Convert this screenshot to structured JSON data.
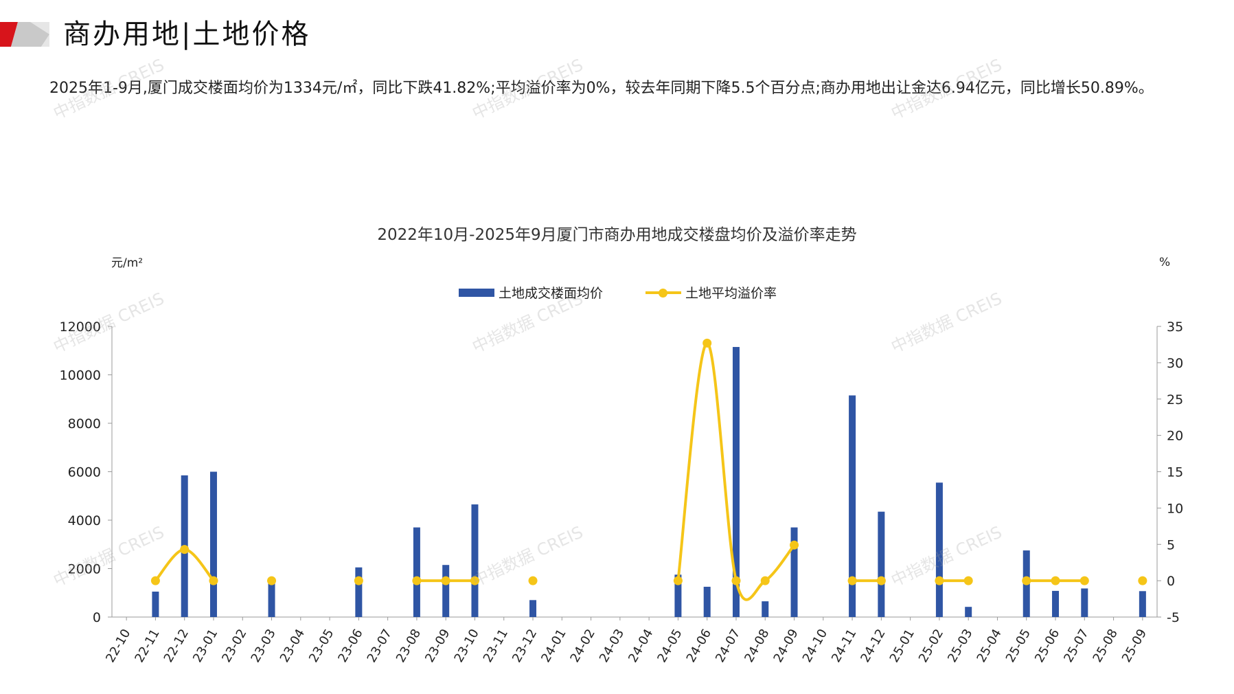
{
  "header": {
    "title": "商办用地|土地价格"
  },
  "summary": "2025年1-9月,厦门成交楼面均价为1334元/㎡，同比下跌41.82%;平均溢价率为0%，较去年同期下降5.5个百分点;商办用地出让金达6.94亿元，同比增长50.89%。",
  "watermark": "中指数据 CREIS",
  "colors": {
    "bar": "#2F55A4",
    "line": "#F5C518",
    "accent": "#D7141B"
  },
  "chart_data": {
    "type": "bar",
    "title": "2022年10月-2025年9月厦门市商办用地成交楼盘均价及溢价率走势",
    "ylabel": "元/m²",
    "y2label": "%",
    "ylim": [
      0,
      12000
    ],
    "yticks": [
      "0",
      "2000",
      "4000",
      "6000",
      "8000",
      "10000",
      "12000"
    ],
    "y2lim": [
      -5,
      35
    ],
    "y2ticks": [
      "-5",
      "0",
      "5",
      "10",
      "15",
      "20",
      "25",
      "30",
      "35"
    ],
    "legend_position": "top-center",
    "grid": false,
    "categories": [
      "22-10",
      "22-11",
      "22-12",
      "23-01",
      "23-02",
      "23-03",
      "23-04",
      "23-05",
      "23-06",
      "23-07",
      "23-08",
      "23-09",
      "23-10",
      "23-11",
      "23-12",
      "24-01",
      "24-02",
      "24-03",
      "24-04",
      "24-05",
      "24-06",
      "24-07",
      "24-08",
      "24-09",
      "24-10",
      "24-11",
      "24-12",
      "25-01",
      "25-02",
      "25-03",
      "25-04",
      "25-05",
      "25-06",
      "25-07",
      "25-08",
      "25-09"
    ],
    "series": [
      {
        "name": "土地成交楼面均价",
        "type": "bar",
        "axis": "left",
        "values": [
          null,
          1050,
          5850,
          6000,
          null,
          1450,
          null,
          null,
          2050,
          null,
          3700,
          2150,
          4650,
          null,
          700,
          null,
          null,
          null,
          null,
          1750,
          1250,
          11150,
          650,
          3700,
          null,
          9150,
          4350,
          null,
          5550,
          420,
          null,
          2750,
          1080,
          1180,
          null,
          1070
        ]
      },
      {
        "name": "土地平均溢价率",
        "type": "line",
        "axis": "right",
        "values": [
          null,
          0,
          4.3,
          0,
          null,
          0,
          null,
          null,
          0,
          null,
          0,
          0,
          0,
          null,
          0,
          null,
          null,
          null,
          null,
          0,
          32.7,
          0,
          0,
          4.9,
          null,
          0,
          0,
          null,
          0,
          0,
          null,
          0,
          0,
          0,
          null,
          0
        ]
      }
    ]
  }
}
